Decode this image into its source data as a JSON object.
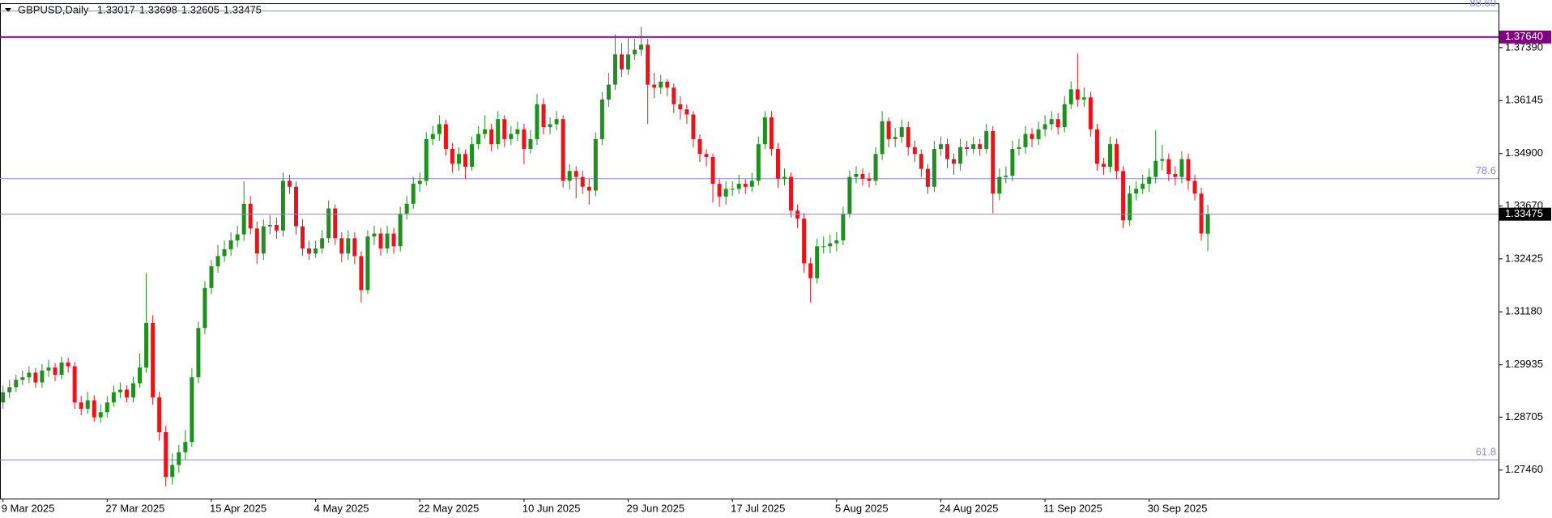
{
  "chart_data": {
    "type": "candlestick",
    "title": "GBPUSD,Daily",
    "up_color": "#1f8f1f",
    "down_color": "#e8141c",
    "ylim": [
      1.2679,
      1.3851
    ],
    "yticks": [
      {
        "value": 1.3739,
        "label": "1.37390"
      },
      1.36145,
      {
        "value": 1.349,
        "label": "1.34900"
      },
      {
        "value": 1.3367,
        "label": "1.33670"
      },
      1.32425,
      {
        "value": 1.3118,
        "label": "1.31180"
      },
      1.29935,
      1.28705,
      {
        "value": 1.2746,
        "label": "1.27460"
      }
    ],
    "last_price_line": true,
    "hlines": [
      {
        "value": 1.3825,
        "label": "88.60",
        "color": "#8a8ad8",
        "style": "fib"
      },
      {
        "value": 1.3764,
        "label": "1.37640",
        "color": "#800080",
        "style": "tag"
      },
      {
        "value": 1.3431,
        "label": "78.6",
        "color": "#8a8ad8",
        "style": "fib"
      },
      {
        "value": 1.277,
        "label": "61.8",
        "color": "#8a8ad8",
        "style": "fib"
      }
    ],
    "categories": [
      "9 Mar 2025",
      null,
      null,
      null,
      null,
      null,
      null,
      null,
      null,
      null,
      null,
      null,
      null,
      null,
      null,
      null,
      "27 Mar 2025",
      null,
      null,
      null,
      null,
      null,
      null,
      null,
      null,
      null,
      null,
      null,
      null,
      null,
      null,
      null,
      "15 Apr 2025",
      null,
      null,
      null,
      null,
      null,
      null,
      null,
      null,
      null,
      null,
      null,
      null,
      null,
      null,
      null,
      "4 May 2025",
      null,
      null,
      null,
      null,
      null,
      null,
      null,
      null,
      null,
      null,
      null,
      null,
      null,
      null,
      null,
      "22 May 2025",
      null,
      null,
      null,
      null,
      null,
      null,
      null,
      null,
      null,
      null,
      null,
      null,
      null,
      null,
      null,
      "10 Jun 2025",
      null,
      null,
      null,
      null,
      null,
      null,
      null,
      null,
      null,
      null,
      null,
      null,
      null,
      null,
      null,
      "29 Jun 2025",
      null,
      null,
      null,
      null,
      null,
      null,
      null,
      null,
      null,
      null,
      null,
      null,
      null,
      null,
      null,
      "17 Jul 2025",
      null,
      null,
      null,
      null,
      null,
      null,
      null,
      null,
      null,
      null,
      null,
      null,
      null,
      null,
      null,
      "5 Aug 2025",
      null,
      null,
      null,
      null,
      null,
      null,
      null,
      null,
      null,
      null,
      null,
      null,
      null,
      null,
      null,
      "24 Aug 2025",
      null,
      null,
      null,
      null,
      null,
      null,
      null,
      null,
      null,
      null,
      null,
      null,
      null,
      null,
      null,
      "11 Sep 2025",
      null,
      null,
      null,
      null,
      null,
      null,
      null,
      null,
      null,
      null,
      null,
      null,
      null,
      null,
      null,
      "30 Sep 2025",
      null,
      null,
      null,
      null,
      null,
      null,
      null,
      null,
      null
    ],
    "open": [
      1.2905,
      1.2929,
      1.2941,
      1.2958,
      1.2964,
      1.2975,
      1.2952,
      1.298,
      1.2987,
      1.297,
      1.2999,
      1.299,
      1.2905,
      1.289,
      1.291,
      1.287,
      1.2882,
      1.2905,
      1.2929,
      1.2935,
      1.2917,
      1.295,
      1.2987,
      1.3092,
      1.2917,
      1.2835,
      1.273,
      1.2758,
      1.2788,
      1.2812,
      1.2964,
      1.308,
      1.3174,
      1.3225,
      1.3249,
      1.3265,
      1.3286,
      1.33,
      1.3372,
      1.3314,
      1.3255,
      1.3319,
      1.3322,
      1.3309,
      1.3426,
      1.3412,
      1.3319,
      1.3267,
      1.3255,
      1.3267,
      1.3291,
      1.3361,
      1.3291,
      1.3255,
      1.3291,
      1.3249,
      1.3169,
      1.3295,
      1.3302,
      1.3267,
      1.3302,
      1.3272,
      1.3349,
      1.3372,
      1.3419,
      1.3426,
      1.3524,
      1.3536,
      1.3559,
      1.3501,
      1.3466,
      1.3489,
      1.3459,
      1.3512,
      1.3536,
      1.3547,
      1.3512,
      1.3571,
      1.3524,
      1.3536,
      1.3547,
      1.3501,
      1.3524,
      1.3606,
      1.3552,
      1.3559,
      1.3571,
      1.3426,
      1.3449,
      1.3435,
      1.3412,
      1.3403,
      1.3524,
      1.3617,
      1.3652,
      1.3723,
      1.3688,
      1.3723,
      1.3734,
      1.3746,
      1.3652,
      1.3645,
      1.3659,
      1.3645,
      1.3606,
      1.3594,
      1.3582,
      1.3524,
      1.3489,
      1.3482,
      1.3419,
      1.3389,
      1.3407,
      1.3407,
      1.3419,
      1.3412,
      1.3426,
      1.3512,
      1.3575,
      1.3501,
      1.3431,
      1.3435,
      1.3356,
      1.3337,
      1.3232,
      1.3197,
      1.3272,
      1.3272,
      1.3279,
      1.3286,
      1.3349,
      1.3435,
      1.3442,
      1.3431,
      1.3426,
      1.3489,
      1.3566,
      1.3524,
      1.3529,
      1.3552,
      1.3505,
      1.3489,
      1.3454,
      1.3412,
      1.3501,
      1.3512,
      1.3477,
      1.3466,
      1.3505,
      1.3501,
      1.3512,
      1.3501,
      1.3543,
      1.3396,
      1.3435,
      1.3438,
      1.3501,
      1.3505,
      1.3536,
      1.3524,
      1.3547,
      1.3559,
      1.3571,
      1.3552,
      1.3606,
      1.3641,
      1.3617,
      1.3622,
      1.3547,
      1.3466,
      1.3459,
      1.3512,
      1.3449,
      1.3333,
      1.3396,
      1.3407,
      1.3419,
      1.3435,
      1.3473,
      1.3477,
      1.3442,
      1.3435,
      1.3477,
      1.3426,
      1.3396,
      1.33017
    ],
    "high": [
      1.2945,
      1.2958,
      1.297,
      1.298,
      1.299,
      1.2985,
      1.2995,
      1.3005,
      1.2998,
      1.3012,
      1.301,
      1.3,
      1.292,
      1.293,
      1.2922,
      1.29,
      1.292,
      1.2945,
      1.2952,
      1.2945,
      1.2965,
      1.302,
      1.3209,
      1.311,
      1.293,
      1.285,
      1.2785,
      1.2805,
      1.284,
      1.2985,
      1.3095,
      1.319,
      1.324,
      1.3275,
      1.3285,
      1.3305,
      1.332,
      1.3425,
      1.339,
      1.333,
      1.3335,
      1.3345,
      1.334,
      1.3445,
      1.344,
      1.3425,
      1.3335,
      1.3285,
      1.3285,
      1.331,
      1.338,
      1.337,
      1.3305,
      1.331,
      1.3305,
      1.326,
      1.331,
      1.332,
      1.3315,
      1.332,
      1.3315,
      1.3365,
      1.339,
      1.3435,
      1.3445,
      1.354,
      1.3555,
      1.358,
      1.357,
      1.3515,
      1.3505,
      1.35,
      1.353,
      1.3555,
      1.358,
      1.356,
      1.359,
      1.358,
      1.3555,
      1.3565,
      1.356,
      1.3545,
      1.363,
      1.362,
      1.3575,
      1.359,
      1.358,
      1.3465,
      1.346,
      1.345,
      1.343,
      1.354,
      1.3635,
      1.368,
      1.377,
      1.375,
      1.3765,
      1.376,
      1.3788,
      1.376,
      1.368,
      1.3675,
      1.3665,
      1.3655,
      1.3625,
      1.3605,
      1.359,
      1.3535,
      1.35,
      1.349,
      1.343,
      1.3425,
      1.3425,
      1.344,
      1.343,
      1.3445,
      1.353,
      1.359,
      1.359,
      1.3515,
      1.3455,
      1.3445,
      1.337,
      1.335,
      1.3245,
      1.329,
      1.3295,
      1.33,
      1.3305,
      1.3365,
      1.345,
      1.346,
      1.3455,
      1.3445,
      1.3505,
      1.359,
      1.3575,
      1.355,
      1.357,
      1.3565,
      1.352,
      1.35,
      1.3465,
      1.352,
      1.353,
      1.3525,
      1.349,
      1.3525,
      1.352,
      1.353,
      1.3525,
      1.356,
      1.3555,
      1.3455,
      1.346,
      1.352,
      1.3525,
      1.3555,
      1.355,
      1.3565,
      1.358,
      1.359,
      1.3585,
      1.3625,
      1.366,
      1.3725,
      1.3645,
      1.3635,
      1.356,
      1.348,
      1.353,
      1.3525,
      1.346,
      1.3415,
      1.3425,
      1.344,
      1.3455,
      1.3545,
      1.351,
      1.349,
      1.346,
      1.3495,
      1.349,
      1.344,
      1.341,
      1.33698
    ],
    "low": [
      1.289,
      1.2915,
      1.293,
      1.2945,
      1.295,
      1.294,
      1.294,
      1.2965,
      1.2955,
      1.296,
      1.2975,
      1.289,
      1.2875,
      1.2878,
      1.286,
      1.2858,
      1.287,
      1.2895,
      1.2915,
      1.2905,
      1.2905,
      1.294,
      1.2975,
      1.29,
      1.2815,
      1.2708,
      1.2712,
      1.274,
      1.277,
      1.28,
      1.295,
      1.3065,
      1.316,
      1.321,
      1.3235,
      1.325,
      1.327,
      1.3285,
      1.33,
      1.323,
      1.324,
      1.33,
      1.329,
      1.3295,
      1.3395,
      1.33,
      1.325,
      1.324,
      1.3245,
      1.3255,
      1.328,
      1.3275,
      1.3235,
      1.324,
      1.323,
      1.314,
      1.316,
      1.3275,
      1.325,
      1.3255,
      1.3255,
      1.326,
      1.3335,
      1.336,
      1.34,
      1.3415,
      1.351,
      1.352,
      1.3485,
      1.3445,
      1.345,
      1.343,
      1.345,
      1.35,
      1.3525,
      1.3495,
      1.35,
      1.3505,
      1.351,
      1.352,
      1.3465,
      1.349,
      1.351,
      1.3535,
      1.3535,
      1.3545,
      1.341,
      1.3405,
      1.3385,
      1.3395,
      1.337,
      1.339,
      1.351,
      1.36,
      1.364,
      1.367,
      1.3675,
      1.371,
      1.372,
      1.356,
      1.362,
      1.363,
      1.3625,
      1.3585,
      1.357,
      1.356,
      1.3505,
      1.347,
      1.346,
      1.3375,
      1.3365,
      1.337,
      1.339,
      1.3395,
      1.3395,
      1.34,
      1.3415,
      1.35,
      1.3485,
      1.341,
      1.3415,
      1.334,
      1.3315,
      1.321,
      1.314,
      1.3185,
      1.3255,
      1.3255,
      1.326,
      1.3275,
      1.334,
      1.342,
      1.3415,
      1.341,
      1.3415,
      1.3475,
      1.3505,
      1.3505,
      1.3515,
      1.3485,
      1.347,
      1.3435,
      1.3395,
      1.34,
      1.3485,
      1.3455,
      1.344,
      1.345,
      1.3485,
      1.349,
      1.3485,
      1.349,
      1.335,
      1.338,
      1.342,
      1.3425,
      1.3485,
      1.349,
      1.3505,
      1.351,
      1.353,
      1.3545,
      1.3535,
      1.354,
      1.3595,
      1.36,
      1.36,
      1.353,
      1.345,
      1.344,
      1.3445,
      1.343,
      1.3315,
      1.332,
      1.338,
      1.3395,
      1.34,
      1.342,
      1.345,
      1.3425,
      1.3415,
      1.342,
      1.3405,
      1.338,
      1.3285,
      1.32605
    ],
    "close": [
      1.2929,
      1.2941,
      1.2958,
      1.2964,
      1.2975,
      1.2952,
      1.298,
      1.2987,
      1.297,
      1.2999,
      1.299,
      1.2905,
      1.289,
      1.291,
      1.287,
      1.2882,
      1.2905,
      1.2929,
      1.2935,
      1.2917,
      1.295,
      1.2987,
      1.3092,
      1.2917,
      1.2835,
      1.273,
      1.2758,
      1.2788,
      1.2812,
      1.2964,
      1.308,
      1.3174,
      1.3225,
      1.3249,
      1.3265,
      1.3286,
      1.33,
      1.3372,
      1.3314,
      1.3255,
      1.3319,
      1.3322,
      1.3309,
      1.3426,
      1.3412,
      1.3319,
      1.3267,
      1.3255,
      1.3267,
      1.3291,
      1.3361,
      1.3291,
      1.3255,
      1.3291,
      1.3249,
      1.3169,
      1.3295,
      1.3302,
      1.3267,
      1.3302,
      1.3272,
      1.3349,
      1.3372,
      1.3419,
      1.3426,
      1.3524,
      1.3536,
      1.3559,
      1.3501,
      1.3466,
      1.3489,
      1.3459,
      1.3512,
      1.3536,
      1.3547,
      1.3512,
      1.3571,
      1.3524,
      1.3536,
      1.3547,
      1.3501,
      1.3524,
      1.3606,
      1.3552,
      1.3559,
      1.3571,
      1.3426,
      1.3449,
      1.3435,
      1.3412,
      1.3403,
      1.3524,
      1.3617,
      1.3652,
      1.3723,
      1.3688,
      1.3723,
      1.3734,
      1.3746,
      1.3652,
      1.3645,
      1.3659,
      1.3645,
      1.3606,
      1.3594,
      1.3582,
      1.3524,
      1.3489,
      1.3482,
      1.3419,
      1.3389,
      1.3407,
      1.3407,
      1.3419,
      1.3412,
      1.3426,
      1.3512,
      1.3575,
      1.3501,
      1.3431,
      1.3435,
      1.3356,
      1.3337,
      1.3232,
      1.3197,
      1.3272,
      1.3272,
      1.3279,
      1.3286,
      1.3349,
      1.3435,
      1.3442,
      1.3431,
      1.3426,
      1.3489,
      1.3566,
      1.3524,
      1.3529,
      1.3552,
      1.3505,
      1.3489,
      1.3454,
      1.3412,
      1.3501,
      1.3512,
      1.3477,
      1.3466,
      1.3505,
      1.3501,
      1.3512,
      1.3501,
      1.3543,
      1.3396,
      1.3435,
      1.3438,
      1.3501,
      1.3505,
      1.3536,
      1.3524,
      1.3547,
      1.3559,
      1.3571,
      1.3552,
      1.3606,
      1.3641,
      1.3617,
      1.3622,
      1.3547,
      1.3466,
      1.3459,
      1.3512,
      1.3449,
      1.3333,
      1.3396,
      1.3407,
      1.3419,
      1.3435,
      1.3473,
      1.3477,
      1.3442,
      1.3435,
      1.3477,
      1.3426,
      1.3396,
      1.3302,
      1.33475
    ]
  }
}
